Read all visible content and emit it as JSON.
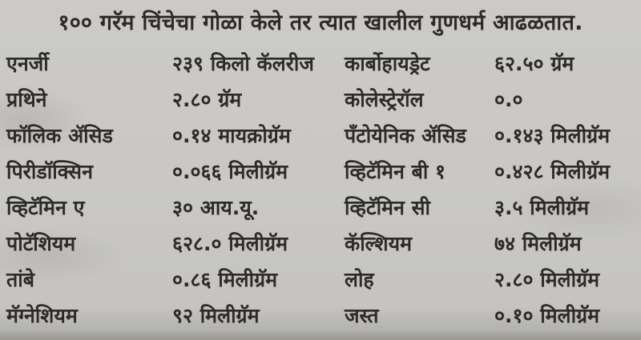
{
  "page": {
    "title": "१०० गरॅम चिंचेचा गोळा केले तर त्यात खालील गुणधर्म आढळतात.",
    "background_color": "#c9c8c5",
    "text_color": "#2d2b28"
  },
  "nutrition_table": {
    "rows": [
      {
        "label_left": "एनर्जी",
        "value_left": "२३९ किलो कॅलरीज",
        "label_right": "कार्बोहायड्रेट",
        "value_right": "६२.५० ग्रॅम"
      },
      {
        "label_left": "प्रथिने",
        "value_left": "२.८० ग्रॅम",
        "label_right": "कोलेस्ट्रेरॉल",
        "value_right": "०.०"
      },
      {
        "label_left": "फॉलिक ॲसिड",
        "value_left": "०.१४ मायक्रोग्रॅम",
        "label_right": "पँटोयेनिक ॲसिड",
        "value_right": "०.१४३ मिलीग्रॅम"
      },
      {
        "label_left": "पिरीडॉक्सिन",
        "value_left": "०.०६६ मिलीग्रॅम",
        "label_right": "व्हिटॅमिन बी १",
        "value_right": "०.४२८ मिलीग्रॅम"
      },
      {
        "label_left": "व्हिटॅमिन ए",
        "value_left": "३० आय.यू.",
        "label_right": "व्हिटॅमिन सी",
        "value_right": "३.५ मिलीग्रॅम"
      },
      {
        "label_left": "पोटॅशियम",
        "value_left": "६२८.० मिलीग्रॅम",
        "label_right": "कॅल्शियम",
        "value_right": "७४ मिलीग्रॅम"
      },
      {
        "label_left": "तांबे",
        "value_left": "०.८६ मिलीग्रॅम",
        "label_right": "लोह",
        "value_right": "२.८० मिलीग्रॅम"
      },
      {
        "label_left": "मॅग्नेशियम",
        "value_left": "९२ मिलीग्रॅम",
        "label_right": "जस्त",
        "value_right": "०.१० मिलीग्रॅम"
      }
    ]
  }
}
